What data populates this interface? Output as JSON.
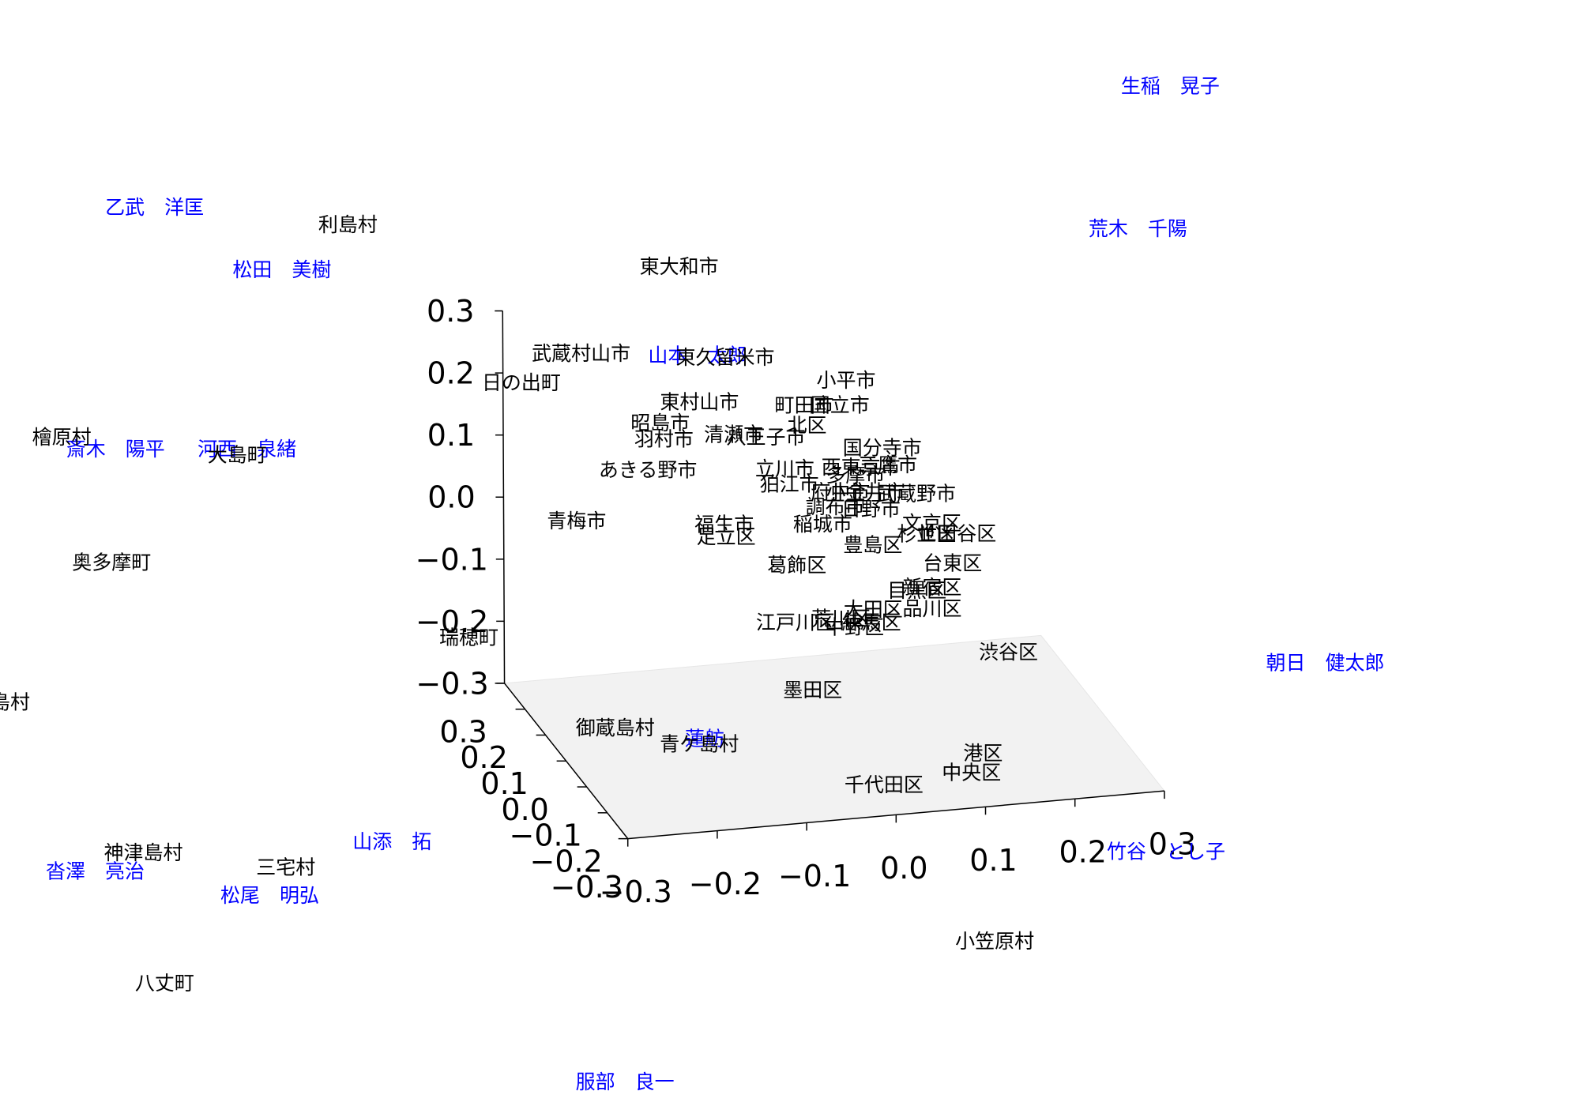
{
  "chart_data": {
    "type": "scatter3d",
    "xlim": [
      -0.3,
      0.3
    ],
    "ylim": [
      -0.3,
      0.3
    ],
    "zlim": [
      -0.3,
      0.3
    ],
    "xticks": [
      {
        "value": -0.3,
        "label": "−0.3"
      },
      {
        "value": -0.2,
        "label": "−0.2"
      },
      {
        "value": -0.1,
        "label": "−0.1"
      },
      {
        "value": 0,
        "label": "0.0"
      },
      0.1,
      0.2,
      0.3
    ],
    "yticks": [
      {
        "value": -0.3,
        "label": "−0.3"
      },
      {
        "value": -0.2,
        "label": "−0.2"
      },
      {
        "value": -0.1,
        "label": "−0.1"
      },
      {
        "value": 0,
        "label": "0.0"
      },
      0.1,
      0.2,
      0.3
    ],
    "zticks": [
      {
        "value": -0.3,
        "label": "−0.3"
      },
      {
        "value": -0.2,
        "label": "−0.2"
      },
      {
        "value": -0.1,
        "label": "−0.1"
      },
      {
        "value": 0,
        "label": "0.0"
      },
      0.1,
      0.2,
      0.3
    ],
    "pane_color": "#f2f2f2",
    "series": [
      {
        "color": "#0000ff",
        "labels": [
          "生稲　晃子",
          "乙武　洋匡",
          "荒木　千陽",
          "松田　美樹",
          "山本　太郎",
          "斎木　陽平",
          "河西　泉緒",
          "朝日　健太郎",
          "蓮舫",
          "竹谷　とし子",
          "山添　拓",
          "沓澤　亮治",
          "松尾　明弘",
          "服部　良一"
        ],
        "x": [
          0.379,
          -0.757,
          0.342,
          -0.615,
          -0.151,
          -0.802,
          -0.655,
          0.549,
          -0.145,
          0.37,
          -0.495,
          -0.827,
          -0.632,
          -0.236
        ],
        "y": [
          0,
          0,
          0,
          0,
          0,
          0,
          0,
          0,
          0,
          0,
          0,
          0,
          0,
          0
        ],
        "z": [
          0.698,
          0.649,
          0.473,
          0.53,
          0.332,
          0.265,
          0.246,
          -0.253,
          -0.286,
          -0.534,
          -0.407,
          -0.412,
          -0.476,
          -0.827
        ]
      },
      {
        "color": "#000000",
        "labels": [
          "利島村",
          "東大和市",
          "武蔵村山市",
          "東久留米市",
          "日の出町",
          "小平市",
          "東村山市",
          "町田市",
          "国立市",
          "昭島市",
          "羽村市",
          "清瀬市",
          "八王子市",
          "北区",
          "檜原村",
          "大島町",
          "国分寺市",
          "あきる野市",
          "立川市",
          "西東京市",
          "三鷹市",
          "多摩市",
          "狛江市",
          "府中市",
          "小金井市",
          "武蔵野市",
          "調布市",
          "日野市",
          "青梅市",
          "福生市",
          "稲城市",
          "文京区",
          "足立区",
          "杉並区",
          "世田谷区",
          "豊島区",
          "奥多摩町",
          "葛飾区",
          "台東区",
          "新宿区",
          "目黒区",
          "大田区",
          "品川区",
          "江戸川区",
          "荒川区",
          "練馬区",
          "中野区",
          "瑞穂町",
          "渋谷区",
          "墨田区",
          "新島村",
          "御蔵島村",
          "青ケ島村",
          "港区",
          "中央区",
          "千代田区",
          "神津島村",
          "三宅村",
          "小笠原村",
          "八丈町"
        ],
        "x": [
          -0.541,
          -0.171,
          -0.281,
          -0.12,
          -0.348,
          0.015,
          -0.149,
          -0.032,
          0.008,
          -0.193,
          -0.189,
          -0.111,
          -0.075,
          -0.029,
          -0.862,
          -0.666,
          0.055,
          -0.207,
          -0.054,
          0.031,
          0.061,
          0.025,
          -0.049,
          0.008,
          0.036,
          0.093,
          0.002,
          0.042,
          -0.287,
          -0.122,
          -0.012,
          0.11,
          -0.12,
          0.104,
          0.138,
          0.044,
          -0.807,
          -0.041,
          0.133,
          0.11,
          0.093,
          0.044,
          0.11,
          -0.043,
          0.008,
          0.042,
          0.023,
          -0.408,
          0.195,
          -0.024,
          -0.932,
          -0.245,
          -0.151,
          0.166,
          0.153,
          0.055,
          -0.773,
          -0.614,
          0.178,
          -0.75
        ],
        "y": [
          0,
          0,
          0,
          0,
          0,
          0,
          0,
          0,
          0,
          0,
          0,
          0,
          0,
          0,
          0,
          0,
          0,
          0,
          0,
          0,
          0,
          0,
          0,
          0,
          0,
          0,
          0,
          0,
          0,
          0,
          0,
          0,
          0,
          0,
          0,
          0,
          0,
          0,
          0,
          0,
          0,
          0,
          0,
          0,
          0,
          0,
          0,
          0,
          0,
          0,
          0,
          0,
          0,
          0,
          0,
          0,
          0,
          0,
          0,
          0
        ],
        "z": [
          0.593,
          0.478,
          0.352,
          0.325,
          0.314,
          0.271,
          0.257,
          0.237,
          0.232,
          0.229,
          0.202,
          0.2,
          0.191,
          0.204,
          0.292,
          0.238,
          0.157,
          0.155,
          0.137,
          0.129,
          0.129,
          0.117,
          0.112,
          0.092,
          0.088,
          0.078,
          0.069,
          0.06,
          0.083,
          0.056,
          0.043,
          0.028,
          0.036,
          0.012,
          0.008,
          0.002,
          0.083,
          -0.02,
          -0.039,
          -0.075,
          -0.078,
          -0.102,
          -0.109,
          -0.112,
          -0.112,
          -0.123,
          -0.128,
          -0.089,
          -0.19,
          -0.223,
          -0.126,
          -0.256,
          -0.294,
          -0.349,
          -0.379,
          -0.386,
          -0.389,
          -0.433,
          -0.654,
          -0.602
        ]
      }
    ]
  }
}
